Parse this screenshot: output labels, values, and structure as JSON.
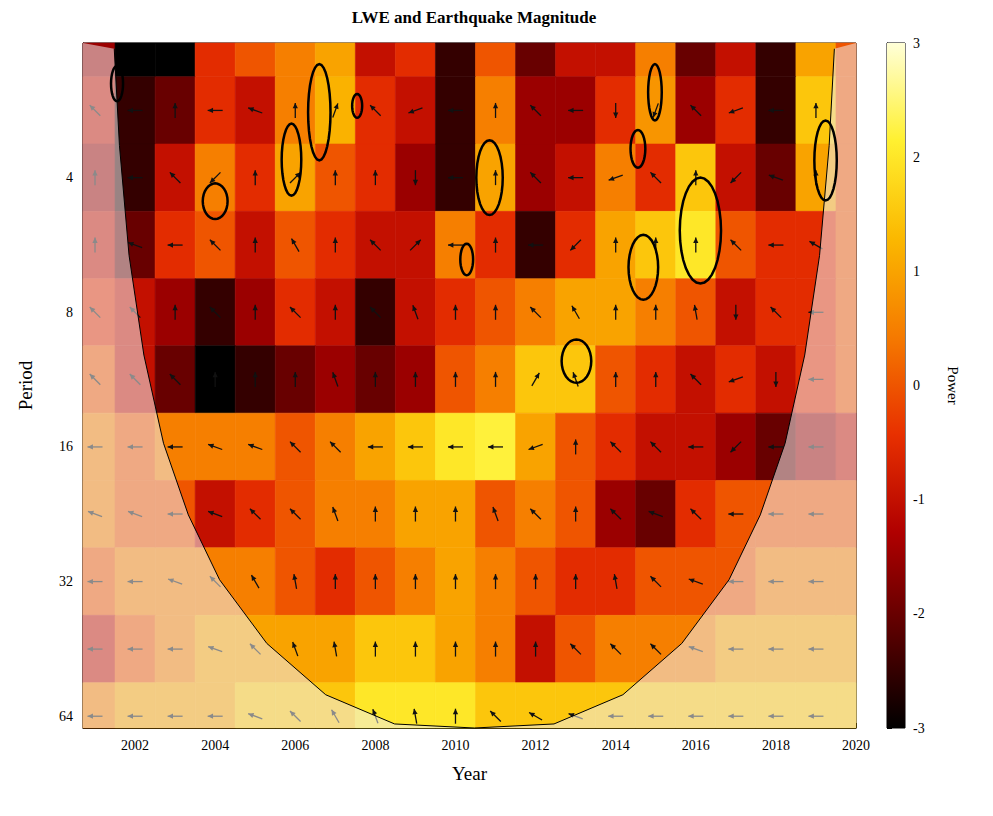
{
  "chart_data": {
    "type": "heatmap",
    "title": "LWE and Earthquake Magnitude",
    "x_label": "Year",
    "y_label": "Period",
    "log": "y",
    "xlim": [
      2000.7,
      2020
    ],
    "xticks": [
      2002,
      2004,
      2006,
      2008,
      2010,
      2012,
      2014,
      2016,
      2018,
      2020
    ],
    "ylim": [
      2,
      68
    ],
    "yticks": [
      4,
      8,
      16,
      32,
      64
    ],
    "x": [
      2001,
      2002,
      2003,
      2004,
      2005,
      2006,
      2007,
      2008,
      2009,
      2010,
      2011,
      2012,
      2013,
      2014,
      2015,
      2016,
      2017,
      2018,
      2019,
      2020
    ],
    "periods": [
      2,
      2.83,
      4,
      5.66,
      8,
      11.3,
      16,
      22.6,
      32,
      45.3,
      64
    ],
    "power": [
      [
        -1.5,
        -3,
        -3,
        -0.5,
        0,
        0.5,
        1,
        -1,
        -0.5,
        -2.5,
        0,
        -2,
        -1,
        -1,
        0.5,
        -2,
        -1,
        -2.5,
        1,
        0
      ],
      [
        -1,
        -2.5,
        -2,
        -0.5,
        -1,
        0.5,
        1.2,
        -0.5,
        -1,
        -2.5,
        0.5,
        -1.5,
        -1.5,
        -0.5,
        0.8,
        -1.5,
        -0.5,
        -2.5,
        1.5,
        0
      ],
      [
        -1.5,
        -2.5,
        -1,
        0.5,
        -0.5,
        1,
        0,
        -0.5,
        -1.5,
        -2.5,
        1,
        -1.5,
        -1,
        0.5,
        -0.5,
        1.5,
        -1,
        -2,
        1,
        0
      ],
      [
        -1,
        -2,
        -0.5,
        0,
        -1,
        0,
        -0.5,
        -1,
        -1,
        0.5,
        -0.5,
        -2.5,
        -0.5,
        1,
        1.5,
        2,
        0,
        -0.5,
        -0.5,
        0
      ],
      [
        -0.5,
        -1,
        -1.5,
        -2.5,
        -1.5,
        -0.5,
        -1,
        -2.5,
        -1,
        -0.5,
        0,
        0.5,
        1,
        1,
        0.5,
        0,
        -1,
        -0.5,
        -0.5,
        0
      ],
      [
        0,
        -1,
        -2,
        -3,
        -2.5,
        -2,
        -1.5,
        -2,
        -1.5,
        0,
        0.5,
        1.5,
        1.5,
        0,
        -0.5,
        -1,
        -0.5,
        -1,
        -0.5,
        0
      ],
      [
        0.5,
        0,
        0.5,
        0.5,
        0.5,
        0,
        0.5,
        1,
        1.5,
        2,
        2.2,
        1,
        0,
        -0.5,
        -1,
        -1,
        -1.5,
        -2,
        -1.5,
        -1
      ],
      [
        0.5,
        0,
        0,
        -1,
        -0.5,
        0,
        0.5,
        0.5,
        1,
        1,
        0,
        0.5,
        0,
        -1.5,
        -2,
        -0.5,
        0,
        0,
        0,
        0
      ],
      [
        0,
        0.5,
        0.5,
        0.5,
        0.5,
        0,
        -0.5,
        0,
        0.5,
        1,
        0.5,
        0,
        -0.5,
        -0.5,
        0,
        0,
        0,
        0.5,
        0.5,
        0.5
      ],
      [
        -1,
        0,
        0.5,
        1,
        1,
        1,
        1,
        1.5,
        1.5,
        1,
        0.5,
        -1,
        0,
        0.5,
        0.5,
        0.5,
        1,
        1,
        1,
        1
      ],
      [
        0.5,
        1,
        1,
        1,
        1.5,
        1.5,
        1.5,
        2,
        2,
        2,
        1.5,
        1.5,
        1.5,
        1.5,
        1.5,
        1.5,
        1.5,
        1.5,
        1.5,
        1.5
      ]
    ],
    "phase": [
      [
        90,
        200,
        160,
        180,
        135,
        90,
        45,
        270,
        100,
        180,
        135,
        160,
        200,
        180,
        270,
        225,
        135,
        180,
        90,
        180
      ],
      [
        135,
        180,
        90,
        180,
        160,
        90,
        70,
        135,
        200,
        180,
        90,
        135,
        180,
        270,
        250,
        135,
        200,
        180,
        90,
        180
      ],
      [
        90,
        180,
        135,
        225,
        90,
        45,
        90,
        90,
        270,
        180,
        90,
        135,
        180,
        200,
        135,
        90,
        225,
        160,
        90,
        180
      ],
      [
        90,
        160,
        180,
        135,
        90,
        120,
        90,
        135,
        45,
        180,
        90,
        180,
        225,
        90,
        90,
        90,
        135,
        180,
        150,
        180
      ],
      [
        135,
        135,
        90,
        135,
        90,
        135,
        90,
        135,
        110,
        90,
        90,
        135,
        120,
        90,
        90,
        100,
        270,
        135,
        180,
        180
      ],
      [
        135,
        135,
        135,
        90,
        90,
        90,
        110,
        90,
        90,
        90,
        90,
        60,
        110,
        90,
        90,
        135,
        200,
        270,
        180,
        180
      ],
      [
        180,
        180,
        180,
        160,
        160,
        135,
        135,
        180,
        180,
        180,
        180,
        200,
        90,
        135,
        135,
        180,
        225,
        180,
        180,
        180
      ],
      [
        160,
        160,
        180,
        160,
        135,
        135,
        110,
        90,
        90,
        90,
        110,
        135,
        90,
        135,
        160,
        135,
        180,
        180,
        180,
        180
      ],
      [
        180,
        180,
        160,
        135,
        120,
        100,
        90,
        90,
        90,
        90,
        90,
        90,
        90,
        100,
        135,
        160,
        180,
        180,
        180,
        180
      ],
      [
        180,
        180,
        180,
        160,
        135,
        110,
        100,
        90,
        90,
        90,
        90,
        90,
        135,
        135,
        135,
        160,
        180,
        180,
        180,
        180
      ],
      [
        180,
        180,
        180,
        180,
        160,
        135,
        120,
        110,
        100,
        90,
        135,
        150,
        160,
        180,
        180,
        180,
        180,
        180,
        180,
        180
      ]
    ],
    "colorbar": {
      "label": "Power",
      "range": [
        -3,
        3
      ],
      "ticks": [
        -3,
        -2,
        -1,
        0,
        1,
        2,
        3
      ]
    },
    "cone_of_influence": [
      [
        2001.48,
        2.06
      ],
      [
        2001.61,
        3.39
      ],
      [
        2001.85,
        5.97
      ],
      [
        2002.22,
        9.97
      ],
      [
        2002.71,
        15.7
      ],
      [
        2003.33,
        22.7
      ],
      [
        2004.11,
        31.7
      ],
      [
        2005.29,
        44.0
      ],
      [
        2006.76,
        57.3
      ],
      [
        2008.48,
        66.6
      ],
      [
        2010.47,
        68
      ],
      [
        2012.46,
        66.6
      ],
      [
        2014.18,
        57.3
      ],
      [
        2015.65,
        44.0
      ],
      [
        2016.83,
        31.7
      ],
      [
        2017.61,
        22.7
      ],
      [
        2018.23,
        15.7
      ],
      [
        2018.72,
        9.97
      ],
      [
        2019.09,
        5.97
      ],
      [
        2019.33,
        3.39
      ],
      [
        2019.46,
        2.06
      ]
    ],
    "significance": [
      {
        "years": [
          2001.4,
          2001.7
        ],
        "periods": [
          2.25,
          2.7
        ]
      },
      {
        "years": [
          2003.69,
          2004.31
        ],
        "periods": [
          4.12,
          4.95
        ]
      },
      {
        "years": [
          2005.66,
          2006.15
        ],
        "periods": [
          3.03,
          4.39
        ]
      },
      {
        "years": [
          2006.32,
          2006.88
        ],
        "periods": [
          2.23,
          3.66
        ]
      },
      {
        "years": [
          2007.42,
          2007.67
        ],
        "periods": [
          2.6,
          2.94
        ]
      },
      {
        "years": [
          2010.52,
          2011.18
        ],
        "periods": [
          3.3,
          4.85
        ]
      },
      {
        "years": [
          2010.12,
          2010.44
        ],
        "periods": [
          5.62,
          6.61
        ]
      },
      {
        "years": [
          2012.65,
          2013.39
        ],
        "periods": [
          9.2,
          11.5
        ]
      },
      {
        "years": [
          2014.32,
          2015.06
        ],
        "periods": [
          5.37,
          7.5
        ]
      },
      {
        "years": [
          2014.37,
          2014.74
        ],
        "periods": [
          3.13,
          3.8
        ]
      },
      {
        "years": [
          2014.81,
          2015.15
        ],
        "periods": [
          2.23,
          2.98
        ]
      },
      {
        "years": [
          2015.6,
          2016.63
        ],
        "periods": [
          4.0,
          6.9
        ]
      },
      {
        "years": [
          2018.96,
          2019.52
        ],
        "periods": [
          2.98,
          4.5
        ]
      }
    ]
  }
}
